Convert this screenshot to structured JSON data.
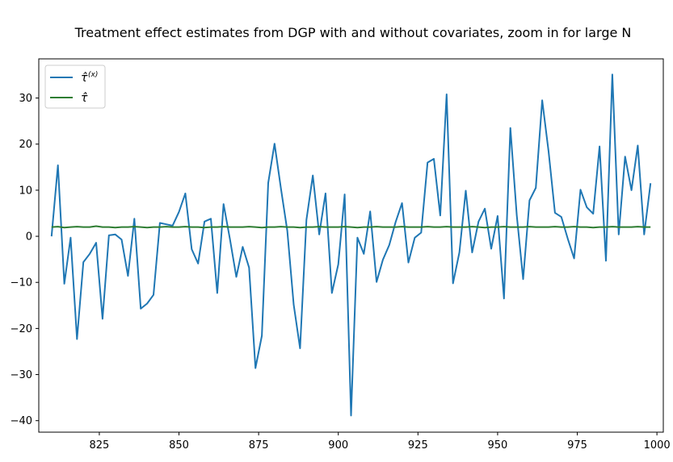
{
  "chart_data": {
    "type": "line",
    "title": "Treatment effect estimates from DGP with and without covariates, zoom in for large N",
    "xlabel": "",
    "ylabel": "",
    "xlim": [
      806,
      1002
    ],
    "ylim": [
      -42.5,
      38.5
    ],
    "x_ticks": [
      825,
      850,
      875,
      900,
      925,
      950,
      975,
      1000
    ],
    "y_ticks": [
      -40,
      -30,
      -20,
      -10,
      0,
      10,
      20,
      30
    ],
    "grid": false,
    "legend_position": "top-left",
    "colors": {
      "tau_x": "#1f77b4",
      "tau": "#2e7d32"
    },
    "x": [
      810,
      812,
      814,
      816,
      818,
      820,
      822,
      824,
      826,
      828,
      830,
      832,
      834,
      836,
      838,
      840,
      842,
      844,
      846,
      848,
      850,
      852,
      854,
      856,
      858,
      860,
      862,
      864,
      866,
      868,
      870,
      872,
      874,
      876,
      878,
      880,
      882,
      884,
      886,
      888,
      890,
      892,
      894,
      896,
      898,
      900,
      902,
      904,
      906,
      908,
      910,
      912,
      914,
      916,
      918,
      920,
      922,
      924,
      926,
      928,
      930,
      932,
      934,
      936,
      938,
      940,
      942,
      944,
      946,
      948,
      950,
      952,
      954,
      956,
      958,
      960,
      962,
      964,
      966,
      968,
      970,
      972,
      974,
      976,
      978,
      980,
      982,
      984,
      986,
      988,
      990,
      992,
      994,
      996,
      998
    ],
    "series": [
      {
        "key": "tau_x",
        "name": "τ̂(x)",
        "values": [
          0.0,
          15.4,
          -10.3,
          -0.3,
          -22.3,
          -5.6,
          -3.8,
          -1.4,
          -17.9,
          0.2,
          0.4,
          -0.7,
          -8.6,
          3.8,
          -15.7,
          -14.6,
          -12.7,
          2.9,
          2.6,
          2.3,
          5.3,
          9.3,
          -2.8,
          -5.9,
          3.2,
          3.8,
          -12.3,
          7.0,
          -0.6,
          -8.8,
          -2.3,
          -6.8,
          -28.6,
          -21.6,
          11.6,
          20.1,
          10.4,
          1.2,
          -14.8,
          -24.3,
          3.6,
          13.2,
          0.4,
          9.3,
          -12.3,
          -6.1,
          9.1,
          -38.9,
          -0.3,
          -3.8,
          5.4,
          -9.9,
          -5.1,
          -1.9,
          3.1,
          7.2,
          -5.7,
          -0.3,
          0.8,
          16.0,
          16.8,
          4.5,
          30.8,
          -10.2,
          -3.5,
          9.9,
          -3.5,
          3.2,
          6.0,
          -2.7,
          4.4,
          -13.5,
          23.5,
          4.6,
          -9.3,
          7.8,
          10.5,
          29.5,
          18.4,
          5.1,
          4.2,
          -0.5,
          -4.8,
          10.1,
          6.3,
          4.9,
          19.5,
          -5.3,
          35.1,
          0.4,
          17.3,
          10.0,
          19.7,
          0.4,
          11.5
        ]
      },
      {
        "key": "tau",
        "name": "τ̂",
        "values": [
          2.0,
          2.1,
          1.9,
          2.0,
          2.1,
          2.0,
          2.0,
          2.2,
          2.0,
          2.0,
          1.9,
          2.0,
          2.0,
          2.1,
          2.0,
          1.9,
          2.0,
          2.0,
          2.1,
          2.0,
          2.0,
          2.1,
          2.0,
          2.0,
          1.9,
          2.0,
          2.0,
          2.1,
          2.0,
          2.0,
          2.0,
          2.1,
          2.0,
          1.9,
          2.0,
          2.0,
          2.1,
          2.0,
          2.0,
          1.9,
          2.0,
          2.0,
          2.1,
          2.0,
          2.0,
          2.0,
          2.1,
          2.0,
          1.9,
          2.0,
          2.0,
          2.1,
          2.0,
          2.0,
          2.0,
          2.1,
          2.0,
          2.0,
          2.0,
          2.1,
          2.0,
          2.0,
          2.1,
          2.0,
          2.0,
          2.0,
          2.1,
          2.0,
          1.9,
          2.0,
          2.0,
          2.1,
          2.0,
          2.0,
          2.0,
          2.1,
          2.0,
          2.0,
          2.0,
          2.1,
          2.0,
          2.0,
          2.1,
          2.0,
          2.0,
          1.9,
          2.0,
          2.0,
          2.1,
          2.0,
          2.0,
          2.0,
          2.1,
          2.0,
          2.0
        ]
      }
    ]
  }
}
